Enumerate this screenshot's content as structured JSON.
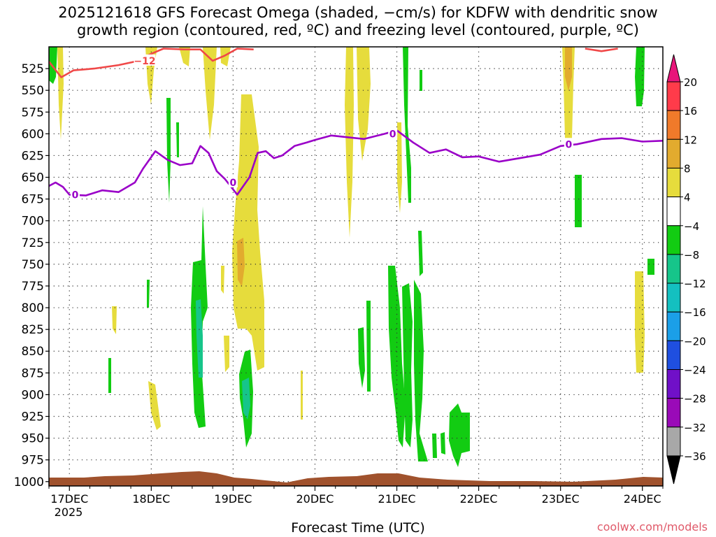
{
  "chart_data": {
    "type": "heatmap",
    "title_lines": [
      "2025121618 GFS Forecast Omega (shaded, −cm/s) for KDFW with dendritic snow",
      "growth region (contoured, red, ºC) and freezing level (contoured, purple, ºC)"
    ],
    "xlabel": "Forecast Time (UTC)",
    "credit": "coolwx.com/models",
    "x_ticks": [
      "17DEC",
      "18DEC",
      "19DEC",
      "20DEC",
      "21DEC",
      "22DEC",
      "23DEC",
      "24DEC"
    ],
    "x_year": "2025",
    "xlim_days": [
      16.75,
      24.25
    ],
    "y_ticks": [
      525,
      550,
      575,
      600,
      625,
      650,
      675,
      700,
      725,
      750,
      775,
      800,
      825,
      850,
      875,
      900,
      925,
      950,
      975,
      1000
    ],
    "ylim_hpa": [
      500,
      1005
    ],
    "grid": true,
    "colorbar": {
      "ticks": [
        "20",
        "16",
        "12",
        "8",
        "4",
        "−4",
        "−8",
        "−12",
        "−16",
        "−20",
        "−24",
        "−28",
        "−32",
        "−36"
      ],
      "colors": [
        "#ff3b4a",
        "#f07a2a",
        "#e2ab2e",
        "#e6dc3c",
        "#ffffff",
        "#12cc12",
        "#16c58a",
        "#14c0c0",
        "#1b9fe8",
        "#1f4fe0",
        "#7010c8",
        "#9a0ab8",
        "#a8a8a8"
      ],
      "top_arrow": "#e8157a",
      "bottom_arrow": "#000000"
    },
    "contours": [
      {
        "label": "0",
        "color": "#9a00c8",
        "points": [
          [
            16.75,
            660
          ],
          [
            16.83,
            656
          ],
          [
            16.92,
            661
          ],
          [
            17.0,
            670
          ],
          [
            17.2,
            671
          ],
          [
            17.4,
            665
          ],
          [
            17.6,
            667
          ],
          [
            17.8,
            656
          ],
          [
            17.9,
            640
          ],
          [
            18.05,
            620
          ],
          [
            18.2,
            630
          ],
          [
            18.35,
            636
          ],
          [
            18.5,
            634
          ],
          [
            18.6,
            614
          ],
          [
            18.7,
            622
          ],
          [
            18.8,
            643
          ],
          [
            18.9,
            652
          ],
          [
            19.05,
            670
          ],
          [
            19.2,
            650
          ],
          [
            19.3,
            622
          ],
          [
            19.4,
            620
          ],
          [
            19.5,
            628
          ],
          [
            19.6,
            625
          ],
          [
            19.75,
            614
          ],
          [
            19.9,
            610
          ],
          [
            20.0,
            607
          ],
          [
            20.2,
            602
          ],
          [
            20.4,
            604
          ],
          [
            20.6,
            606
          ],
          [
            20.85,
            600
          ],
          [
            21.0,
            596
          ],
          [
            21.2,
            610
          ],
          [
            21.4,
            622
          ],
          [
            21.6,
            618
          ],
          [
            21.8,
            627
          ],
          [
            22.0,
            626
          ],
          [
            22.25,
            632
          ],
          [
            22.5,
            628
          ],
          [
            22.75,
            624
          ],
          [
            23.0,
            614
          ],
          [
            23.2,
            612
          ],
          [
            23.5,
            606
          ],
          [
            23.75,
            605
          ],
          [
            24.0,
            609
          ],
          [
            24.25,
            608
          ]
        ],
        "labels_at": [
          [
            17.07,
            670
          ],
          [
            19.0,
            656
          ],
          [
            20.95,
            600
          ],
          [
            23.1,
            612
          ]
        ]
      },
      {
        "label": "−12",
        "color": "#f04848",
        "points": [
          [
            16.75,
            517
          ],
          [
            16.9,
            535
          ],
          [
            17.05,
            527
          ],
          [
            17.3,
            525
          ],
          [
            17.6,
            521
          ],
          [
            17.8,
            517
          ],
          [
            18.0,
            508
          ],
          [
            18.15,
            502
          ],
          [
            18.4,
            503
          ],
          [
            18.6,
            503
          ],
          [
            18.75,
            516
          ],
          [
            18.9,
            510
          ],
          [
            19.05,
            502
          ],
          [
            19.25,
            503
          ]
        ],
        "labels_at": [
          [
            17.92,
            516
          ]
        ]
      },
      {
        "label": "",
        "color": "#f04848",
        "points": [
          [
            23.3,
            502
          ],
          [
            23.5,
            505
          ],
          [
            23.7,
            502
          ]
        ],
        "labels_at": []
      }
    ]
  }
}
